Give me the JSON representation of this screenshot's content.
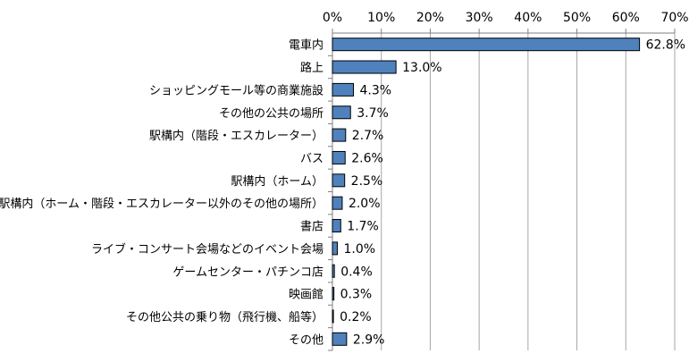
{
  "chart_data": {
    "type": "bar",
    "orientation": "horizontal",
    "categories": [
      "電車内",
      "路上",
      "ショッピングモール等の商業施設",
      "その他の公共の場所",
      "駅構内（階段・エスカレーター）",
      "バス",
      "駅構内（ホーム）",
      "駅構内（ホーム・階段・エスカレーター以外のその他の場所）",
      "書店",
      "ライブ・コンサート会場などのイベント会場",
      "ゲームセンター・パチンコ店",
      "映画館",
      "その他公共の乗り物（飛行機、船等）",
      "その他"
    ],
    "values": [
      62.8,
      13.0,
      4.3,
      3.7,
      2.7,
      2.6,
      2.5,
      2.0,
      1.7,
      1.0,
      0.4,
      0.3,
      0.2,
      2.9
    ],
    "value_labels": [
      "62.8%",
      "13.0%",
      "4.3%",
      "3.7%",
      "2.7%",
      "2.6%",
      "2.5%",
      "2.0%",
      "1.7%",
      "1.0%",
      "0.4%",
      "0.3%",
      "0.2%",
      "2.9%"
    ],
    "x_ticks": [
      0,
      10,
      20,
      30,
      40,
      50,
      60,
      70
    ],
    "x_tick_labels": [
      "0%",
      "10%",
      "20%",
      "30%",
      "40%",
      "50%",
      "60%",
      "70%"
    ],
    "xlim": [
      0,
      70
    ],
    "axis_position": "top",
    "grid": true,
    "legend": "none",
    "title": "",
    "xlabel": "",
    "ylabel": "",
    "colors": {
      "bar_fill": "#4F81BD",
      "bar_stroke": "#000000",
      "grid": "#A6A6A6",
      "axis": "#7F7F7F",
      "text": "#000000"
    }
  }
}
